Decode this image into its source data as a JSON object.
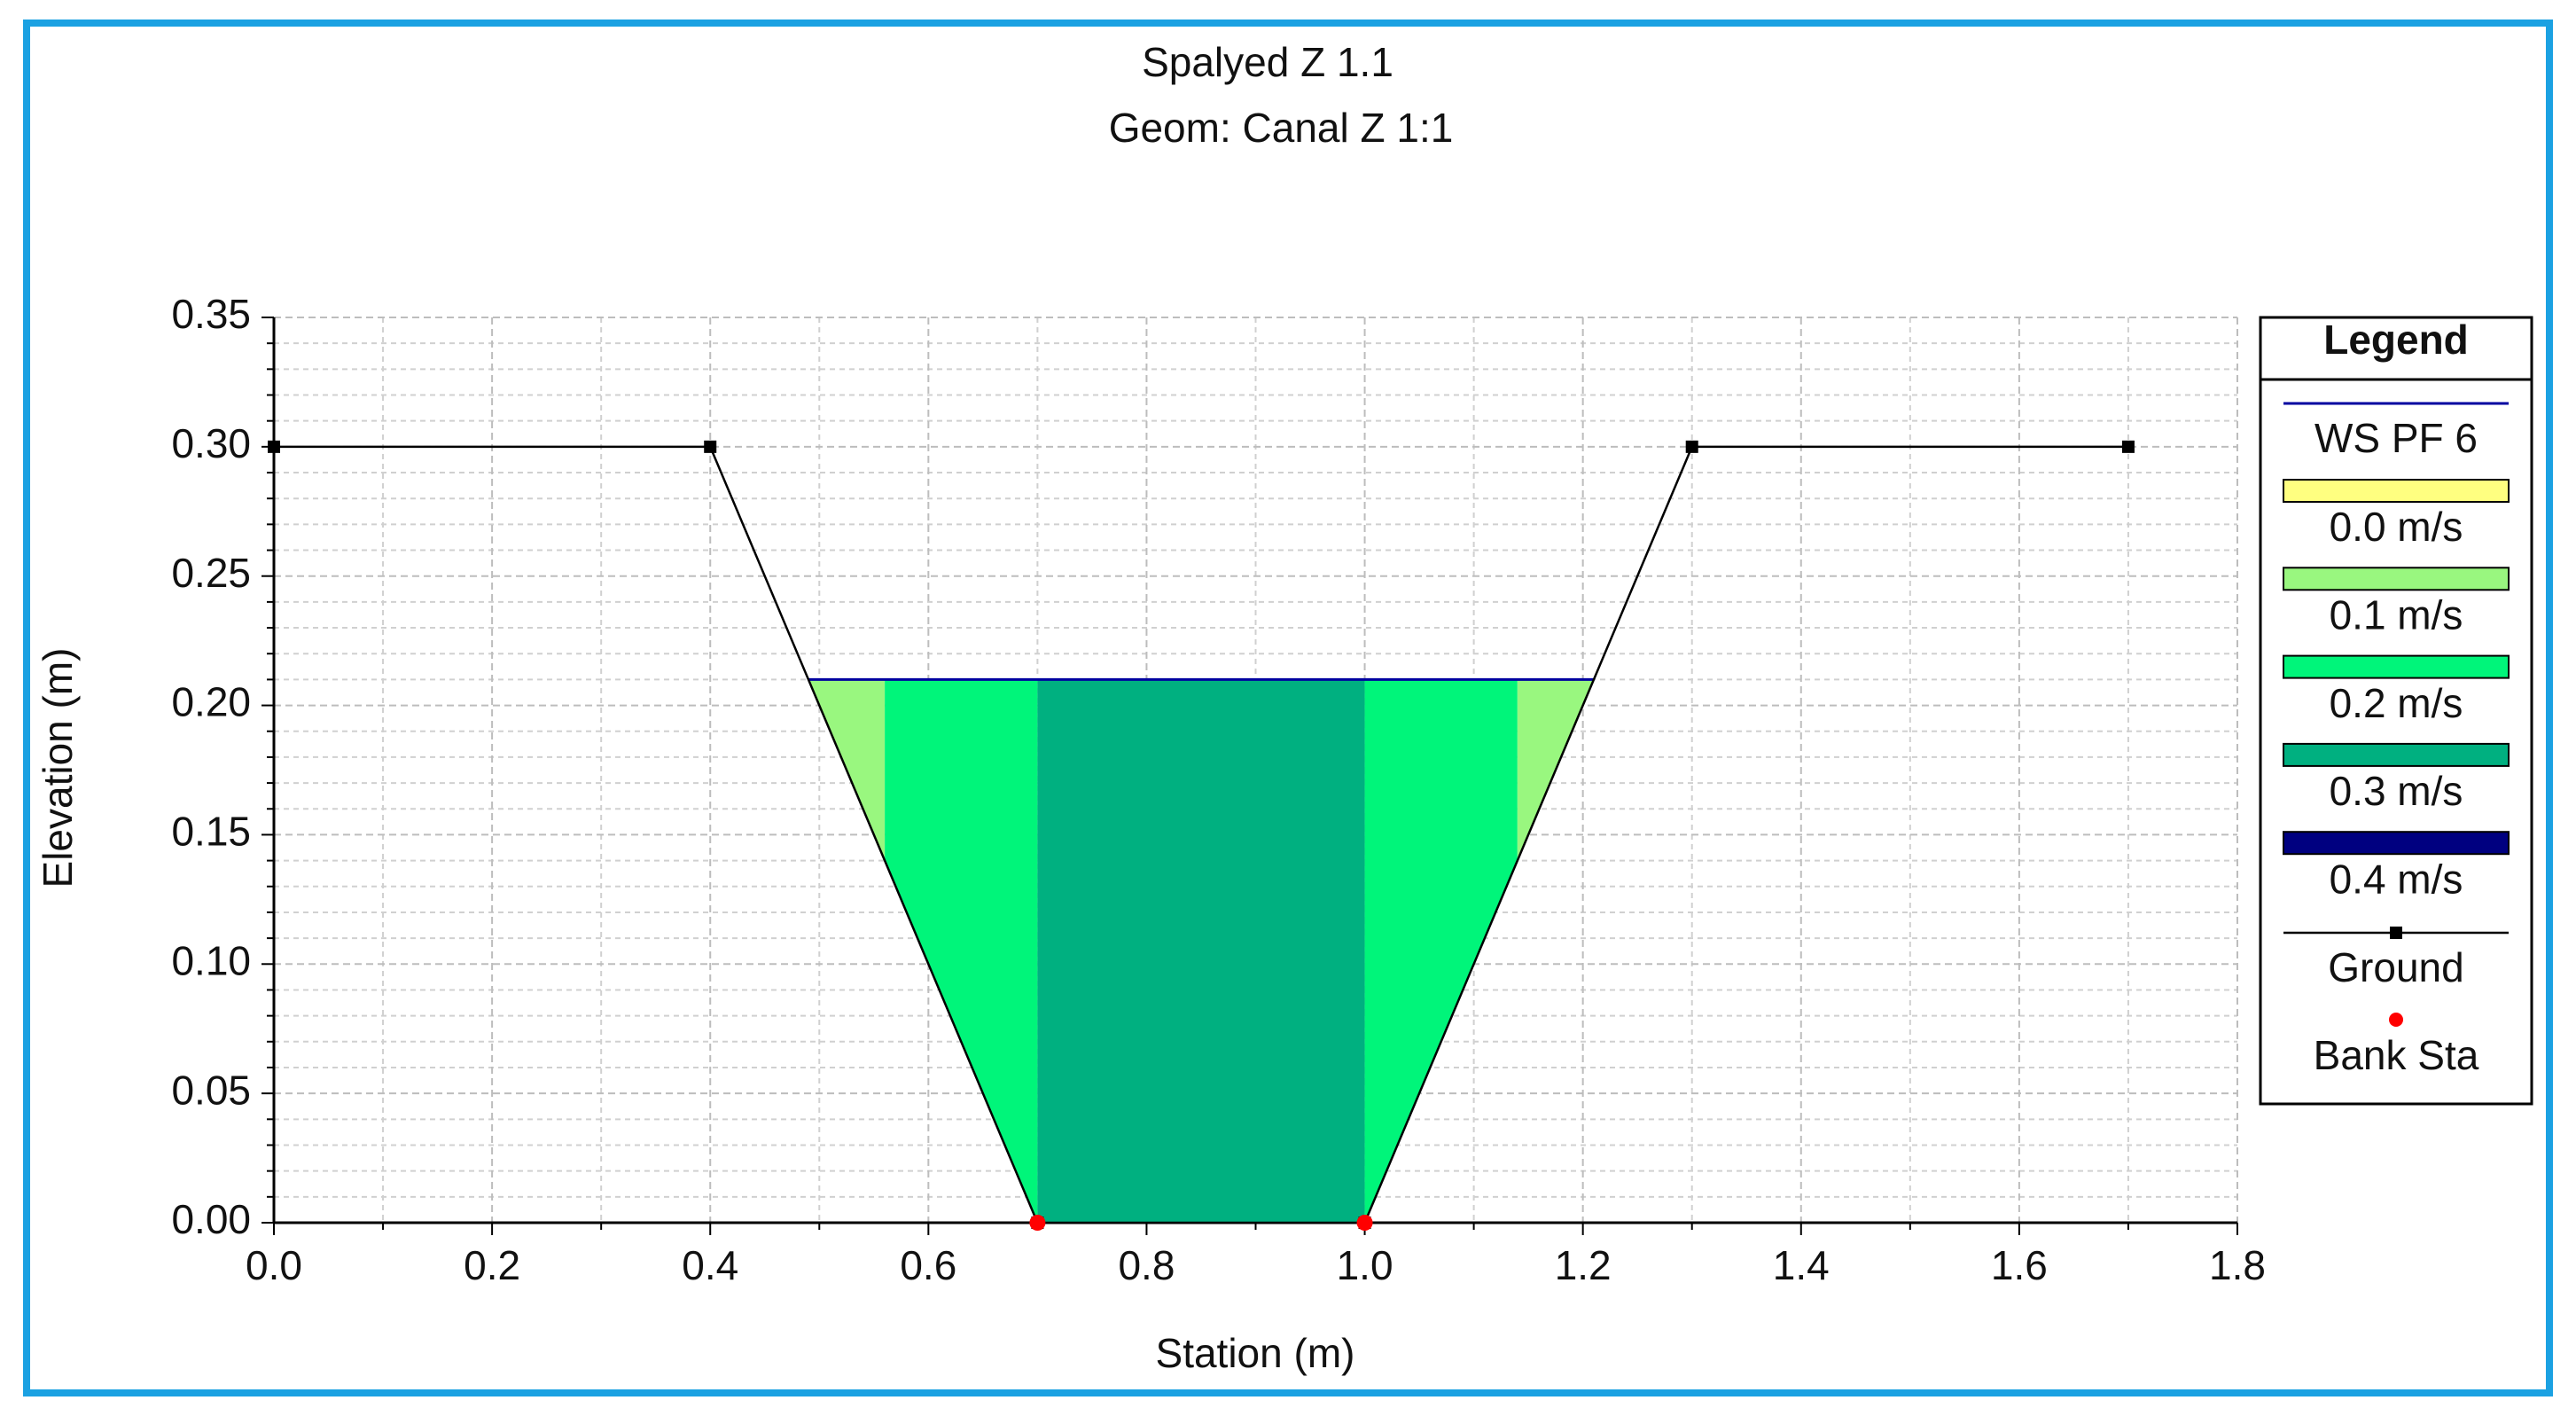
{
  "chart_data": {
    "type": "area",
    "title": "Spalyed Z 1.1",
    "subtitle": "Geom: Canal Z 1:1",
    "xlabel": "Station (m)",
    "ylabel": "Elevation (m)",
    "legend_title": "Legend",
    "xlim": [
      0,
      1.8
    ],
    "ylim": [
      0,
      0.35
    ],
    "xticks": [
      {
        "value": 0,
        "label": "0.0"
      },
      {
        "value": 0.2,
        "label": "0.2"
      },
      {
        "value": 0.4,
        "label": "0.4"
      },
      {
        "value": 0.6,
        "label": "0.6"
      },
      {
        "value": 0.8,
        "label": "0.8"
      },
      {
        "value": 1,
        "label": "1.0"
      },
      {
        "value": 1.2,
        "label": "1.2"
      },
      {
        "value": 1.4,
        "label": "1.4"
      },
      {
        "value": 1.6,
        "label": "1.6"
      },
      {
        "value": 1.8,
        "label": "1.8"
      }
    ],
    "yticks": [
      {
        "value": 0,
        "label": "0.00"
      },
      {
        "value": 0.05,
        "label": "0.05"
      },
      {
        "value": 0.1,
        "label": "0.10"
      },
      {
        "value": 0.15,
        "label": "0.15"
      },
      {
        "value": 0.2,
        "label": "0.20"
      },
      {
        "value": 0.25,
        "label": "0.25"
      },
      {
        "value": 0.3,
        "label": "0.30"
      },
      {
        "value": 0.35,
        "label": "0.35"
      }
    ],
    "grid": true,
    "series": [
      {
        "name": "WS PF 6",
        "color": "#0000a0",
        "x": [
          0.49,
          1.21
        ],
        "values": [
          0.21,
          0.21
        ]
      },
      {
        "name": "Ground",
        "color": "#000000",
        "x": [
          0,
          0.4,
          0.7,
          1.0,
          1.3,
          1.7
        ],
        "values": [
          0.3,
          0.3,
          0,
          0,
          0.3,
          0.3
        ]
      },
      {
        "name": "Bank Sta",
        "color": "#ff0000",
        "x": [
          0.7,
          1.0
        ],
        "values": [
          0,
          0
        ]
      }
    ],
    "velocity_bins": [
      {
        "name": "0.0 m/s",
        "color": "#ffff80"
      },
      {
        "name": "0.1 m/s",
        "color": "#99f77f"
      },
      {
        "name": "0.2 m/s",
        "color": "#00f57a"
      },
      {
        "name": "0.3 m/s",
        "color": "#00b080"
      },
      {
        "name": "0.4 m/s",
        "color": "#000080"
      }
    ],
    "velocity_zones": [
      {
        "x": [
          0.49,
          0.56
        ],
        "color": "#99f77f"
      },
      {
        "x": [
          0.56,
          0.7
        ],
        "color": "#00f57a"
      },
      {
        "x": [
          0.7,
          1.0
        ],
        "color": "#00b080"
      },
      {
        "x": [
          1.0,
          1.14
        ],
        "color": "#00f57a"
      },
      {
        "x": [
          1.14,
          1.21
        ],
        "color": "#99f77f"
      }
    ]
  }
}
